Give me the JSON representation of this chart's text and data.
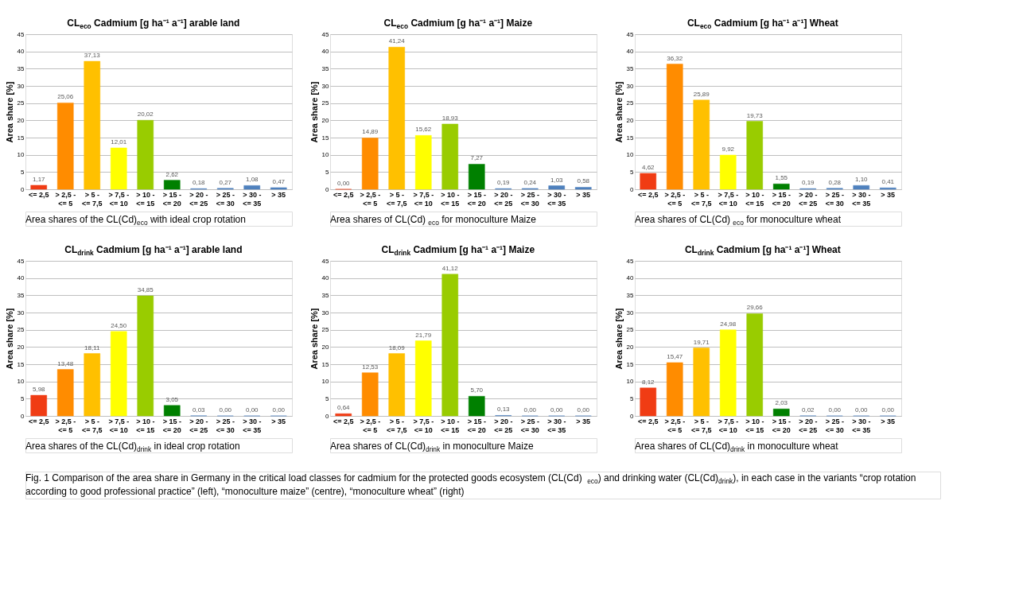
{
  "chart_data": [
    {
      "type": "bar",
      "title": "CL$_{eco}$ Cadmium [g ha⁻¹ a⁻¹]  arable land",
      "ylabel": "Area share [%]",
      "categories": [
        "<= 2,5",
        "> 2,5 - <= 5",
        "> 5 - <= 7,5",
        "> 7,5 - <= 10",
        "> 10 - <= 15",
        "> 15 - <= 20",
        "> 20 - <= 25",
        "> 25 - <= 30",
        "> 30 - <= 35",
        "> 35"
      ],
      "values": [
        1.17,
        25.06,
        37.13,
        12.01,
        20.02,
        2.62,
        0.18,
        0.27,
        1.08,
        0.47
      ],
      "value_labels": [
        "1,17",
        "25,06",
        "37,13",
        "12,01",
        "20,02",
        "2,62",
        "0,18",
        "0,27",
        "1,08",
        "0,47"
      ],
      "colors": [
        "#f03c14",
        "#ff8c00",
        "#ffc000",
        "#ffff00",
        "#99cc00",
        "#008000",
        "#4f81bd",
        "#4f81bd",
        "#4f81bd",
        "#4f81bd"
      ],
      "ylim": [
        0,
        45
      ],
      "yticks": [
        0,
        5,
        10,
        15,
        20,
        25,
        30,
        35,
        40,
        45
      ],
      "grid": "y",
      "annotations": [
        "Area shares of the CL(Cd)$_{eco}$ with ideal crop rotation"
      ]
    },
    {
      "type": "bar",
      "title": "CL$_{eco}$ Cadmium [g ha⁻¹ a⁻¹]  Maize",
      "ylabel": "Area share [%]",
      "categories": [
        "<= 2,5",
        "> 2,5 - <= 5",
        "> 5 - <= 7,5",
        "> 7,5 - <= 10",
        "> 10 - <= 15",
        "> 15 - <= 20",
        "> 20 - <= 25",
        "> 25 - <= 30",
        "> 30 - <= 35",
        "> 35"
      ],
      "values": [
        0.0,
        14.89,
        41.24,
        15.62,
        18.93,
        7.27,
        0.19,
        0.24,
        1.03,
        0.58
      ],
      "value_labels": [
        "0,00",
        "14,89",
        "41,24",
        "15,62",
        "18,93",
        "7,27",
        "0,19",
        "0,24",
        "1,03",
        "0,58"
      ],
      "colors": [
        "#f03c14",
        "#ff8c00",
        "#ffc000",
        "#ffff00",
        "#99cc00",
        "#008000",
        "#4f81bd",
        "#4f81bd",
        "#4f81bd",
        "#4f81bd"
      ],
      "ylim": [
        0,
        45
      ],
      "yticks": [
        0,
        5,
        10,
        15,
        20,
        25,
        30,
        35,
        40,
        45
      ],
      "grid": "y",
      "annotations": [
        "Area shares of CL(Cd) $_{eco}$ for monoculture Maize"
      ]
    },
    {
      "type": "bar",
      "title": "CL$_{eco}$ Cadmium [g ha⁻¹ a⁻¹]  Wheat",
      "ylabel": "Area share [%]",
      "categories": [
        "<= 2,5",
        "> 2,5 - <= 5",
        "> 5 - <= 7,5",
        "> 7,5 - <= 10",
        "> 10 - <= 15",
        "> 15 - <= 20",
        "> 20 - <= 25",
        "> 25 - <= 30",
        "> 30 - <= 35",
        "> 35"
      ],
      "values": [
        4.62,
        36.32,
        25.89,
        9.92,
        19.73,
        1.55,
        0.19,
        0.28,
        1.1,
        0.41
      ],
      "value_labels": [
        "4,62",
        "36,32",
        "25,89",
        "9,92",
        "19,73",
        "1,55",
        "0,19",
        "0,28",
        "1,10",
        "0,41"
      ],
      "colors": [
        "#f03c14",
        "#ff8c00",
        "#ffc000",
        "#ffff00",
        "#99cc00",
        "#008000",
        "#4f81bd",
        "#4f81bd",
        "#4f81bd",
        "#4f81bd"
      ],
      "ylim": [
        0,
        45
      ],
      "yticks": [
        0,
        5,
        10,
        15,
        20,
        25,
        30,
        35,
        40,
        45
      ],
      "grid": "y",
      "annotations": [
        "Area shares of CL(Cd) $_{eco}$ for monoculture wheat"
      ]
    },
    {
      "type": "bar",
      "title": "CL$_{drink}$ Cadmium [g ha⁻¹ a⁻¹]  arable land",
      "ylabel": "Area share [%]",
      "categories": [
        "<= 2,5",
        "> 2,5 - <= 5",
        "> 5 - <= 7,5",
        "> 7,5 - <= 10",
        "> 10 - <= 15",
        "> 15 - <= 20",
        "> 20 - <= 25",
        "> 25 - <= 30",
        "> 30 - <= 35",
        "> 35"
      ],
      "values": [
        5.98,
        13.48,
        18.11,
        24.5,
        34.85,
        3.05,
        0.03,
        0.0,
        0.0,
        0.0
      ],
      "value_labels": [
        "5,98",
        "13,48",
        "18,11",
        "24,50",
        "34,85",
        "3,05",
        "0,03",
        "0,00",
        "0,00",
        "0,00"
      ],
      "colors": [
        "#f03c14",
        "#ff8c00",
        "#ffc000",
        "#ffff00",
        "#99cc00",
        "#008000",
        "#4f81bd",
        "#4f81bd",
        "#4f81bd",
        "#4f81bd"
      ],
      "ylim": [
        0,
        45
      ],
      "yticks": [
        0,
        5,
        10,
        15,
        20,
        25,
        30,
        35,
        40,
        45
      ],
      "grid": "y",
      "annotations": [
        "Area shares of the CL(Cd)$_{drink}$ in ideal crop rotation"
      ]
    },
    {
      "type": "bar",
      "title": "CL$_{drink}$ Cadmium [g ha⁻¹ a⁻¹]  Maize",
      "ylabel": "Area share [%]",
      "categories": [
        "<= 2,5",
        "> 2,5 - <= 5",
        "> 5 - <= 7,5",
        "> 7,5 - <= 10",
        "> 10 - <= 15",
        "> 15 - <= 20",
        "> 20 - <= 25",
        "> 25 - <= 30",
        "> 30 - <= 35",
        "> 35"
      ],
      "values": [
        0.64,
        12.53,
        18.09,
        21.79,
        41.12,
        5.7,
        0.13,
        0.0,
        0.0,
        0.0
      ],
      "value_labels": [
        "0,64",
        "12,53",
        "18,09",
        "21,79",
        "41,12",
        "5,70",
        "0,13",
        "0,00",
        "0,00",
        "0,00"
      ],
      "colors": [
        "#f03c14",
        "#ff8c00",
        "#ffc000",
        "#ffff00",
        "#99cc00",
        "#008000",
        "#4f81bd",
        "#4f81bd",
        "#4f81bd",
        "#4f81bd"
      ],
      "ylim": [
        0,
        45
      ],
      "yticks": [
        0,
        5,
        10,
        15,
        20,
        25,
        30,
        35,
        40,
        45
      ],
      "grid": "y",
      "annotations": [
        "Area shares of CL(Cd)$_{drink}$ in monoculture Maize"
      ]
    },
    {
      "type": "bar",
      "title": "CL$_{drink}$ Cadmium [g ha⁻¹ a⁻¹]  Wheat",
      "ylabel": "Area share [%]",
      "categories": [
        "<= 2,5",
        "> 2,5 - <= 5",
        "> 5 - <= 7,5",
        "> 7,5 - <= 10",
        "> 10 - <= 15",
        "> 15 - <= 20",
        "> 20 - <= 25",
        "> 25 - <= 30",
        "> 30 - <= 35",
        "> 35"
      ],
      "values": [
        8.12,
        15.47,
        19.71,
        24.98,
        29.66,
        2.03,
        0.02,
        0.0,
        0.0,
        0.0
      ],
      "value_labels": [
        "8,12",
        "15,47",
        "19,71",
        "24,98",
        "29,66",
        "2,03",
        "0,02",
        "0,00",
        "0,00",
        "0,00"
      ],
      "colors": [
        "#f03c14",
        "#ff8c00",
        "#ffc000",
        "#ffff00",
        "#99cc00",
        "#008000",
        "#4f81bd",
        "#4f81bd",
        "#4f81bd",
        "#4f81bd"
      ],
      "ylim": [
        0,
        45
      ],
      "yticks": [
        0,
        5,
        10,
        15,
        20,
        25,
        30,
        35,
        40,
        45
      ],
      "grid": "y",
      "annotations": [
        "Area shares of CL(Cd)$_{drink}$ in monoculture wheat",
        "Fig. 1  Comparison of the area share in Germany in the critical load classes for cadmium for the protected goods ecosystem (CL(Cd) $_{eco}$) and drinking water (CL(Cd)$_{drink}$), in each case in the variants “crop rotation according to good professional practice” (left), “monoculture maize” (centre), “monoculture wheat” (right)"
      ]
    }
  ]
}
